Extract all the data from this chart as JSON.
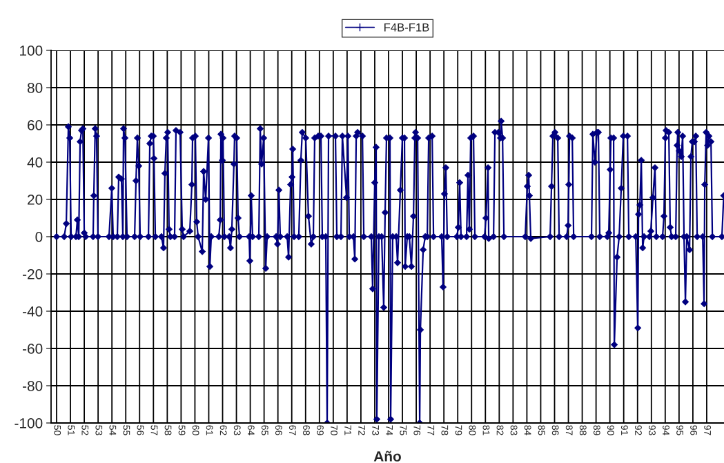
{
  "chart_data": {
    "type": "line",
    "xlabel": "Año",
    "legend": "top",
    "grid": true,
    "marker": "diamond",
    "line_style": "solid",
    "xlim": [
      49.6,
      98.25
    ],
    "xticks": [
      50,
      51,
      52,
      53,
      54,
      55,
      56,
      57,
      58,
      59,
      60,
      61,
      62,
      63,
      64,
      65,
      66,
      67,
      68,
      69,
      70,
      71,
      72,
      73,
      74,
      75,
      76,
      77,
      78,
      79,
      80,
      81,
      82,
      83,
      84,
      85,
      86,
      87,
      88,
      89,
      90,
      91,
      92,
      93,
      94,
      95,
      96,
      97
    ],
    "ylim": [
      -100,
      100
    ],
    "yticks": [
      -100,
      -80,
      -60,
      -40,
      -20,
      0,
      20,
      40,
      60,
      80,
      100
    ],
    "series": [
      {
        "name": "F4B-F1B",
        "color": "#000080",
        "x": [
          50.0,
          50.55,
          50.7,
          50.85,
          50.95,
          51.05,
          51.4,
          51.5,
          51.6,
          51.7,
          51.8,
          51.9,
          52.0,
          52.1,
          52.64,
          52.69,
          52.79,
          52.89,
          52.99,
          53.79,
          53.99,
          54.09,
          54.39,
          54.49,
          54.69,
          54.79,
          54.84,
          54.94,
          55.09,
          55.64,
          55.74,
          55.84,
          55.94,
          56.04,
          56.64,
          56.74,
          56.84,
          56.99,
          57.04,
          57.14,
          57.58,
          57.73,
          57.83,
          57.93,
          58.03,
          58.13,
          58.23,
          58.53,
          58.63,
          58.93,
          59.08,
          59.18,
          59.63,
          59.78,
          59.83,
          60.03,
          60.13,
          60.23,
          60.53,
          60.63,
          60.78,
          60.98,
          61.08,
          61.18,
          61.73,
          61.83,
          61.88,
          61.98,
          62.03,
          62.13,
          62.48,
          62.57,
          62.67,
          62.82,
          62.87,
          63.02,
          63.12,
          63.22,
          63.92,
          63.97,
          64.07,
          64.17,
          64.62,
          64.72,
          64.82,
          64.97,
          65.12,
          65.22,
          65.87,
          65.97,
          66.07,
          66.17,
          66.67,
          66.77,
          66.92,
          67.02,
          67.07,
          67.17,
          67.51,
          67.66,
          67.76,
          68.01,
          68.21,
          68.41,
          68.56,
          68.66,
          68.91,
          69.11,
          69.21,
          69.46,
          69.56,
          69.66,
          70.16,
          70.26,
          70.56,
          70.66,
          70.96,
          71.06,
          71.16,
          71.46,
          71.56,
          71.66,
          71.76,
          72.11,
          72.21,
          72.75,
          72.85,
          73.0,
          73.1,
          73.15,
          73.3,
          73.5,
          73.65,
          73.75,
          73.85,
          74.1,
          74.15,
          74.3,
          74.55,
          74.65,
          74.85,
          75.0,
          75.15,
          75.2,
          75.35,
          75.5,
          75.65,
          75.8,
          75.9,
          75.95,
          76.1,
          76.25,
          76.3,
          76.5,
          76.65,
          76.8,
          76.9,
          77.15,
          77.25,
          77.84,
          77.94,
          78.04,
          78.14,
          78.24,
          78.94,
          79.04,
          79.14,
          79.24,
          79.64,
          79.74,
          79.84,
          79.94,
          80.14,
          80.24,
          80.94,
          81.04,
          81.19,
          81.24,
          81.59,
          81.69,
          81.94,
          82.09,
          82.14,
          82.24,
          82.34,
          83.88,
          84.03,
          84.13,
          84.18,
          84.28,
          85.68,
          85.78,
          85.88,
          86.03,
          86.23,
          86.33,
          86.88,
          86.98,
          87.03,
          87.08,
          87.28,
          87.38,
          88.67,
          88.77,
          88.92,
          89.07,
          89.17,
          89.27,
          89.82,
          89.92,
          90.02,
          90.07,
          90.27,
          90.32,
          90.52,
          90.67,
          90.82,
          90.97,
          91.27,
          91.37,
          91.87,
          92.02,
          92.07,
          92.17,
          92.27,
          92.37,
          92.47,
          92.86,
          92.96,
          93.11,
          93.26,
          93.36,
          93.81,
          93.91,
          94.01,
          94.06,
          94.26,
          94.36,
          94.46,
          94.76,
          94.86,
          94.91,
          95.01,
          95.16,
          95.26,
          95.36,
          95.46,
          95.56,
          95.76,
          95.86,
          95.96,
          96.11,
          96.21,
          96.31,
          96.71,
          96.81,
          96.86,
          96.96,
          97.06,
          97.16,
          97.31,
          97.41,
          98.1,
          98.23
        ],
        "values": [
          0,
          0,
          7,
          59,
          53,
          0,
          0,
          9,
          0,
          51,
          57,
          58,
          2,
          0,
          0,
          22,
          58,
          54,
          0,
          0,
          26,
          0,
          0,
          32,
          31,
          0,
          58,
          53,
          0,
          0,
          30,
          53,
          38,
          0,
          0,
          50,
          54,
          54,
          42,
          0,
          0,
          -6,
          34,
          53,
          56,
          4,
          0,
          0,
          57,
          56,
          4,
          0,
          3,
          28,
          53,
          54,
          8,
          0,
          -8,
          35,
          20,
          53,
          -16,
          0,
          0,
          9,
          55,
          41,
          53,
          0,
          0,
          -6,
          4,
          39,
          54,
          53,
          10,
          0,
          0,
          -13,
          22,
          0,
          0,
          58,
          39,
          53,
          -17,
          0,
          0,
          -4,
          25,
          0,
          0,
          -11,
          28,
          32,
          47,
          0,
          0,
          41,
          56,
          53,
          11,
          -4,
          0,
          53,
          54,
          54,
          0,
          0,
          -100,
          54,
          54,
          0,
          0,
          54,
          21,
          54,
          0,
          0,
          -12,
          54,
          56,
          54,
          0,
          0,
          -28,
          29,
          48,
          -98,
          0,
          0,
          -38,
          13,
          53,
          53,
          -98,
          0,
          0,
          -14,
          25,
          53,
          53,
          -16,
          0,
          0,
          -16,
          11,
          53,
          56,
          53,
          -100,
          -50,
          -7,
          0,
          0,
          53,
          54,
          0,
          0,
          -27,
          23,
          37,
          0,
          0,
          5,
          29,
          0,
          0,
          33,
          4,
          53,
          54,
          0,
          0,
          10,
          37,
          -1,
          0,
          56,
          56,
          53,
          62,
          53,
          0,
          0,
          27,
          33,
          22,
          -1,
          0,
          27,
          54,
          56,
          53,
          0,
          0,
          6,
          28,
          54,
          53,
          0,
          0,
          55,
          40,
          56,
          56,
          0,
          0,
          2,
          36,
          53,
          53,
          -58,
          -11,
          0,
          26,
          54,
          54,
          0,
          0,
          -49,
          12,
          17,
          41,
          -6,
          0,
          0,
          3,
          21,
          37,
          0,
          0,
          11,
          53,
          57,
          56,
          5,
          0,
          0,
          49,
          56,
          46,
          43,
          54,
          0,
          -35,
          0,
          -7,
          43,
          51,
          51,
          54,
          0,
          0,
          -36,
          28,
          56,
          49,
          54,
          51,
          0,
          0,
          22
        ]
      }
    ]
  }
}
